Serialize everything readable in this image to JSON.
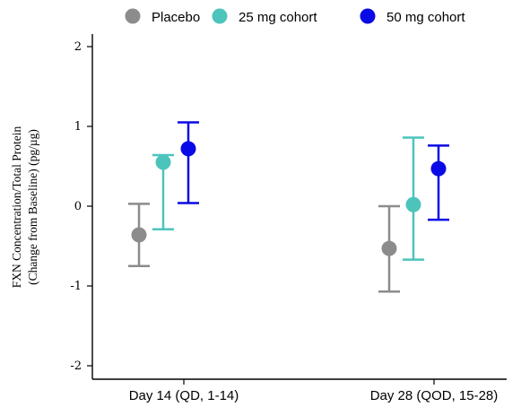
{
  "chart_data": {
    "type": "scatter",
    "title": "",
    "xlabel": "",
    "ylabel_lines": [
      "FXN Concentration/Total Protein",
      "(Change from Baseline) (pg/µg)"
    ],
    "categories": [
      "Day 14 (QD, 1-14)",
      "Day 28 (QOD, 15-28)"
    ],
    "ylim": [
      -2.2,
      2.1
    ],
    "yticks": [
      2,
      1,
      0,
      -1,
      -2
    ],
    "grid": false,
    "legend_position": "top",
    "series": [
      {
        "name": "Placebo",
        "color": "#8c8c8c",
        "values": [
          -0.36,
          -0.53
        ],
        "lower": [
          -0.75,
          -1.07
        ],
        "upper": [
          0.03,
          0.0
        ]
      },
      {
        "name": "25 mg cohort",
        "color": "#4cc4bc",
        "values": [
          0.55,
          0.02
        ],
        "lower": [
          -0.29,
          -0.67
        ],
        "upper": [
          0.64,
          0.86
        ]
      },
      {
        "name": "50 mg cohort",
        "color": "#0a0ae6",
        "values": [
          0.72,
          0.47
        ],
        "lower": [
          0.04,
          -0.17
        ],
        "upper": [
          1.05,
          0.76
        ]
      }
    ]
  }
}
